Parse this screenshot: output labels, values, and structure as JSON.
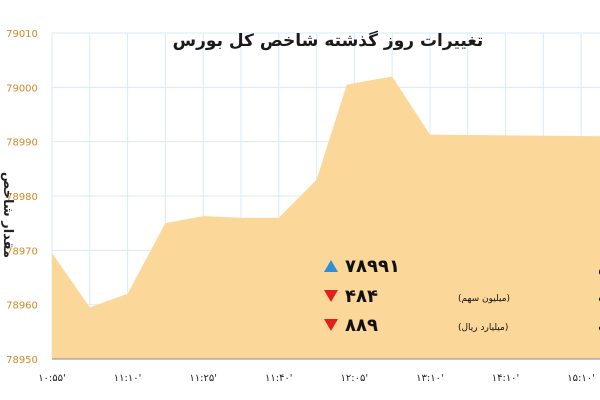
{
  "chart_data": {
    "type": "area",
    "title": "تغییرات روز گذشته شاخص کل بورس",
    "ylabel": "مقدار شاخص",
    "ylim": [
      78950,
      79010
    ],
    "yticks": [
      78950,
      78960,
      78970,
      78980,
      78990,
      79000,
      79010
    ],
    "ytick_labels": [
      "78950",
      "78960",
      "78970",
      "78980",
      "78990",
      "79000",
      "79010"
    ],
    "x_tick_labels": [
      "۱۰:۵۵'",
      "۱۱:۱۰'",
      "۱۱:۲۵'",
      "۱۱:۴۰'",
      "۱۲:۰۵'",
      "۱۳:۱۰'",
      "۱۴:۱۰'",
      "۱۵:۱۰'"
    ],
    "x_tick_positions": [
      0,
      2,
      4,
      6,
      8,
      10,
      12,
      14
    ],
    "points": [
      {
        "x": 0,
        "y": 78969.5
      },
      {
        "x": 1,
        "y": 78959.5
      },
      {
        "x": 2,
        "y": 78962
      },
      {
        "x": 3,
        "y": 78975
      },
      {
        "x": 4,
        "y": 78976.3
      },
      {
        "x": 5,
        "y": 78976
      },
      {
        "x": 6,
        "y": 78976
      },
      {
        "x": 7,
        "y": 78983
      },
      {
        "x": 7.8,
        "y": 79000.5
      },
      {
        "x": 9,
        "y": 79002
      },
      {
        "x": 10,
        "y": 78991.3
      },
      {
        "x": 14.5,
        "y": 78991
      }
    ],
    "x_range": [
      0,
      14.5
    ],
    "grid": true,
    "colors": {
      "fill": "#fcd79a",
      "grid": "#d6ecf5",
      "ytick": "#d0892a",
      "up": "#2b8fd9",
      "down": "#e0201c"
    },
    "annotations": [
      {
        "label": "شاخص",
        "unit": "",
        "value": "۷۸۹۹۱",
        "direction": "up"
      },
      {
        "label": "حجم معاملات",
        "unit": "(میلیون سهم)",
        "value": "۴۸۴",
        "direction": "down"
      },
      {
        "label": "ارزش معاملات",
        "unit": "(میلیارد ریال)",
        "value": "۸۸۹",
        "direction": "down"
      }
    ]
  }
}
